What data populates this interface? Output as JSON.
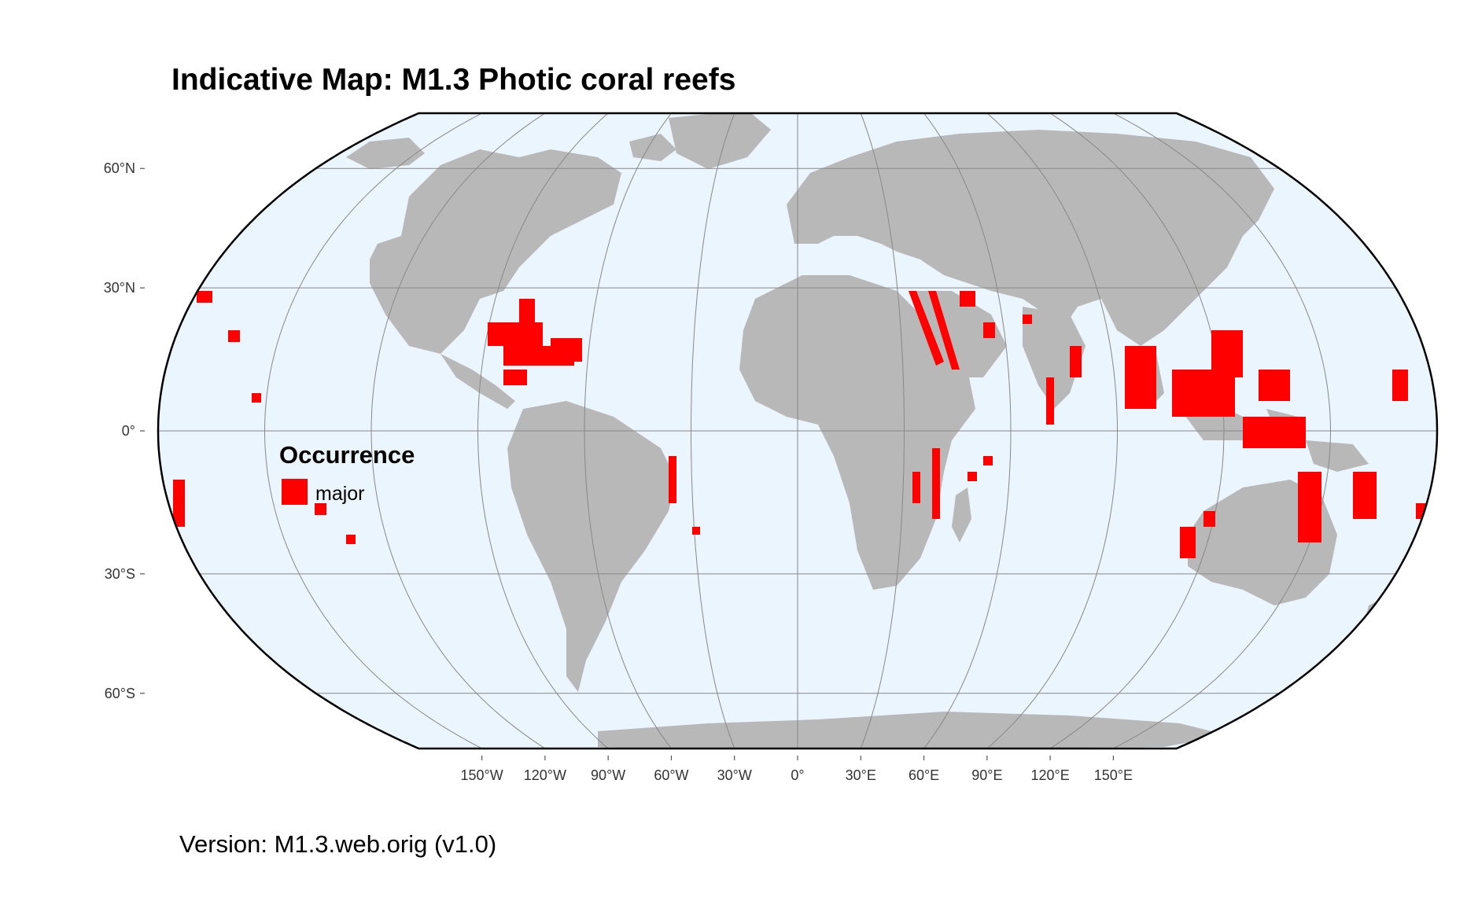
{
  "title": "Indicative Map: M1.3 Photic coral reefs",
  "version": "Version: M1.3.web.orig (v1.0)",
  "map": {
    "projection": "Equal Earth",
    "background_color": "#ebf5fd",
    "land_color": "#b8b8b8",
    "graticule_color": "#888888",
    "border_color": "#000000",
    "lat_ticks": [
      {
        "value": 60,
        "label": "60°N"
      },
      {
        "value": 30,
        "label": "30°N"
      },
      {
        "value": 0,
        "label": "0°"
      },
      {
        "value": -30,
        "label": "30°S"
      },
      {
        "value": -60,
        "label": "60°S"
      }
    ],
    "lon_ticks": [
      {
        "value": -150,
        "label": "150°W"
      },
      {
        "value": -120,
        "label": "120°W"
      },
      {
        "value": -90,
        "label": "90°W"
      },
      {
        "value": -60,
        "label": "60°W"
      },
      {
        "value": -30,
        "label": "30°W"
      },
      {
        "value": 0,
        "label": "0°"
      },
      {
        "value": 30,
        "label": "30°E"
      },
      {
        "value": 60,
        "label": "60°E"
      },
      {
        "value": 90,
        "label": "90°E"
      },
      {
        "value": 120,
        "label": "120°E"
      },
      {
        "value": 150,
        "label": "150°E"
      }
    ]
  },
  "legend": {
    "title": "Occurrence",
    "items": [
      {
        "label": "major",
        "color": "#ff0000"
      }
    ]
  }
}
